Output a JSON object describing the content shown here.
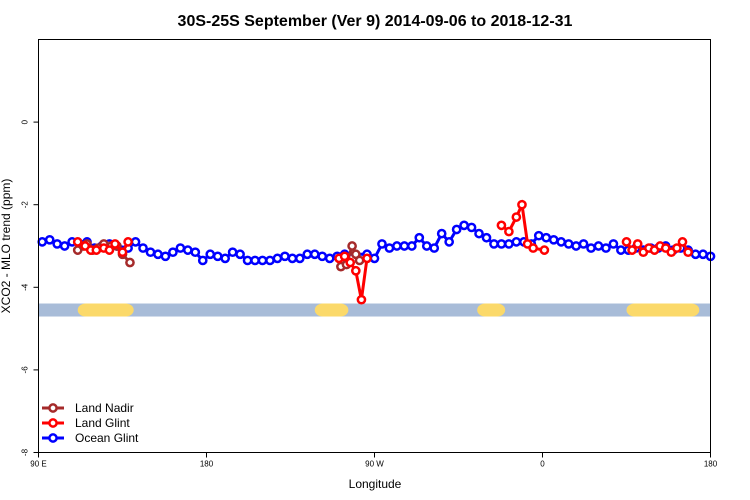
{
  "chart_data": {
    "type": "line",
    "title": "30S-25S September (Ver 9)   2014-09-06 to 2018-12-31",
    "xlabel": "Longitude",
    "ylabel": "XCO2 - MLO trend (ppm)",
    "xlim": [
      90,
      450
    ],
    "ylim": [
      -8,
      2
    ],
    "xticks": [
      {
        "value": 90,
        "label": "90 E"
      },
      {
        "value": 180,
        "label": "180"
      },
      {
        "value": 270,
        "label": "90 W"
      },
      {
        "value": 360,
        "label": "0"
      },
      {
        "value": 450,
        "label": "180"
      }
    ],
    "yticks": [
      {
        "value": 0,
        "label": "0"
      },
      {
        "value": -2,
        "label": "-2"
      },
      {
        "value": -4,
        "label": "-4"
      },
      {
        "value": -6,
        "label": "-6"
      },
      {
        "value": -8,
        "label": "-8"
      }
    ],
    "land_ocean_bar": {
      "y": -4.55,
      "ocean_color": "#a8bcd8",
      "land_color": "#fbd96a",
      "land_segments": [
        [
          111,
          141
        ],
        [
          238,
          256
        ],
        [
          325,
          340
        ],
        [
          405,
          444
        ]
      ]
    },
    "series": [
      {
        "name": "Land Nadir",
        "color": "#a52a2a",
        "x": [
          111,
          114,
          116,
          119,
          122,
          125,
          129,
          132,
          135,
          139,
          252,
          255,
          258,
          260,
          262
        ],
        "y": [
          -3.1,
          -3.0,
          -2.95,
          -3.1,
          -3.05,
          -2.95,
          -3.0,
          -3.0,
          -3.2,
          -3.4,
          -3.5,
          -3.45,
          -3.0,
          -3.2,
          -3.35
        ]
      },
      {
        "name": "Land Glint",
        "color": "#ff0000",
        "x": [
          111,
          115,
          118,
          121,
          125,
          128,
          131,
          135,
          138,
          251,
          254,
          257,
          260,
          263,
          266,
          338,
          342,
          346,
          349,
          352,
          355,
          361,
          405,
          408,
          411,
          414,
          417,
          420,
          423,
          426,
          429,
          432,
          435,
          438
        ],
        "y": [
          -2.9,
          -3.0,
          -3.1,
          -3.1,
          -3.05,
          -3.1,
          -2.95,
          -3.15,
          -2.9,
          -3.3,
          -3.25,
          -3.4,
          -3.6,
          -4.3,
          -3.3,
          -2.5,
          -2.65,
          -2.3,
          -2.0,
          -2.95,
          -3.05,
          -3.1,
          -2.9,
          -3.1,
          -2.95,
          -3.15,
          -3.05,
          -3.1,
          -3.0,
          -3.05,
          -3.15,
          -3.05,
          -2.9,
          -3.15
        ]
      },
      {
        "name": "Ocean Glint",
        "color": "#0000ff",
        "x": [
          92,
          96,
          100,
          104,
          108,
          112,
          116,
          120,
          124,
          128,
          132,
          138,
          142,
          146,
          150,
          154,
          158,
          162,
          166,
          170,
          174,
          178,
          182,
          186,
          190,
          194,
          198,
          202,
          206,
          210,
          214,
          218,
          222,
          226,
          230,
          234,
          238,
          242,
          246,
          250,
          254,
          266,
          270,
          274,
          278,
          282,
          286,
          290,
          294,
          298,
          302,
          306,
          310,
          314,
          318,
          322,
          326,
          330,
          334,
          338,
          342,
          346,
          350,
          354,
          358,
          362,
          366,
          370,
          374,
          378,
          382,
          386,
          390,
          394,
          398,
          402,
          406,
          410,
          414,
          418,
          422,
          426,
          430,
          434,
          438,
          442,
          446,
          450
        ],
        "y": [
          -2.9,
          -2.85,
          -2.95,
          -3.0,
          -2.9,
          -2.95,
          -2.9,
          -3.05,
          -3.0,
          -2.95,
          -3.0,
          -3.05,
          -2.9,
          -3.05,
          -3.15,
          -3.2,
          -3.25,
          -3.15,
          -3.05,
          -3.1,
          -3.15,
          -3.35,
          -3.2,
          -3.25,
          -3.3,
          -3.15,
          -3.2,
          -3.35,
          -3.35,
          -3.35,
          -3.35,
          -3.3,
          -3.25,
          -3.3,
          -3.3,
          -3.2,
          -3.2,
          -3.25,
          -3.3,
          -3.25,
          -3.2,
          -3.2,
          -3.3,
          -2.95,
          -3.05,
          -3.0,
          -3.0,
          -3.0,
          -2.8,
          -3.0,
          -3.05,
          -2.7,
          -2.9,
          -2.6,
          -2.5,
          -2.55,
          -2.7,
          -2.8,
          -2.95,
          -2.95,
          -2.95,
          -2.9,
          -2.9,
          -2.95,
          -2.75,
          -2.8,
          -2.85,
          -2.9,
          -2.95,
          -3.0,
          -2.95,
          -3.05,
          -3.0,
          -3.05,
          -2.95,
          -3.1,
          -3.1,
          -3.05,
          -3.1,
          -3.05,
          -3.05,
          -3.0,
          -3.1,
          -3.05,
          -3.1,
          -3.2,
          -3.2,
          -3.25
        ]
      }
    ],
    "legend": {
      "placement": "bottom-left",
      "entries": [
        "Land Nadir",
        "Land Glint",
        "Ocean Glint"
      ]
    }
  }
}
